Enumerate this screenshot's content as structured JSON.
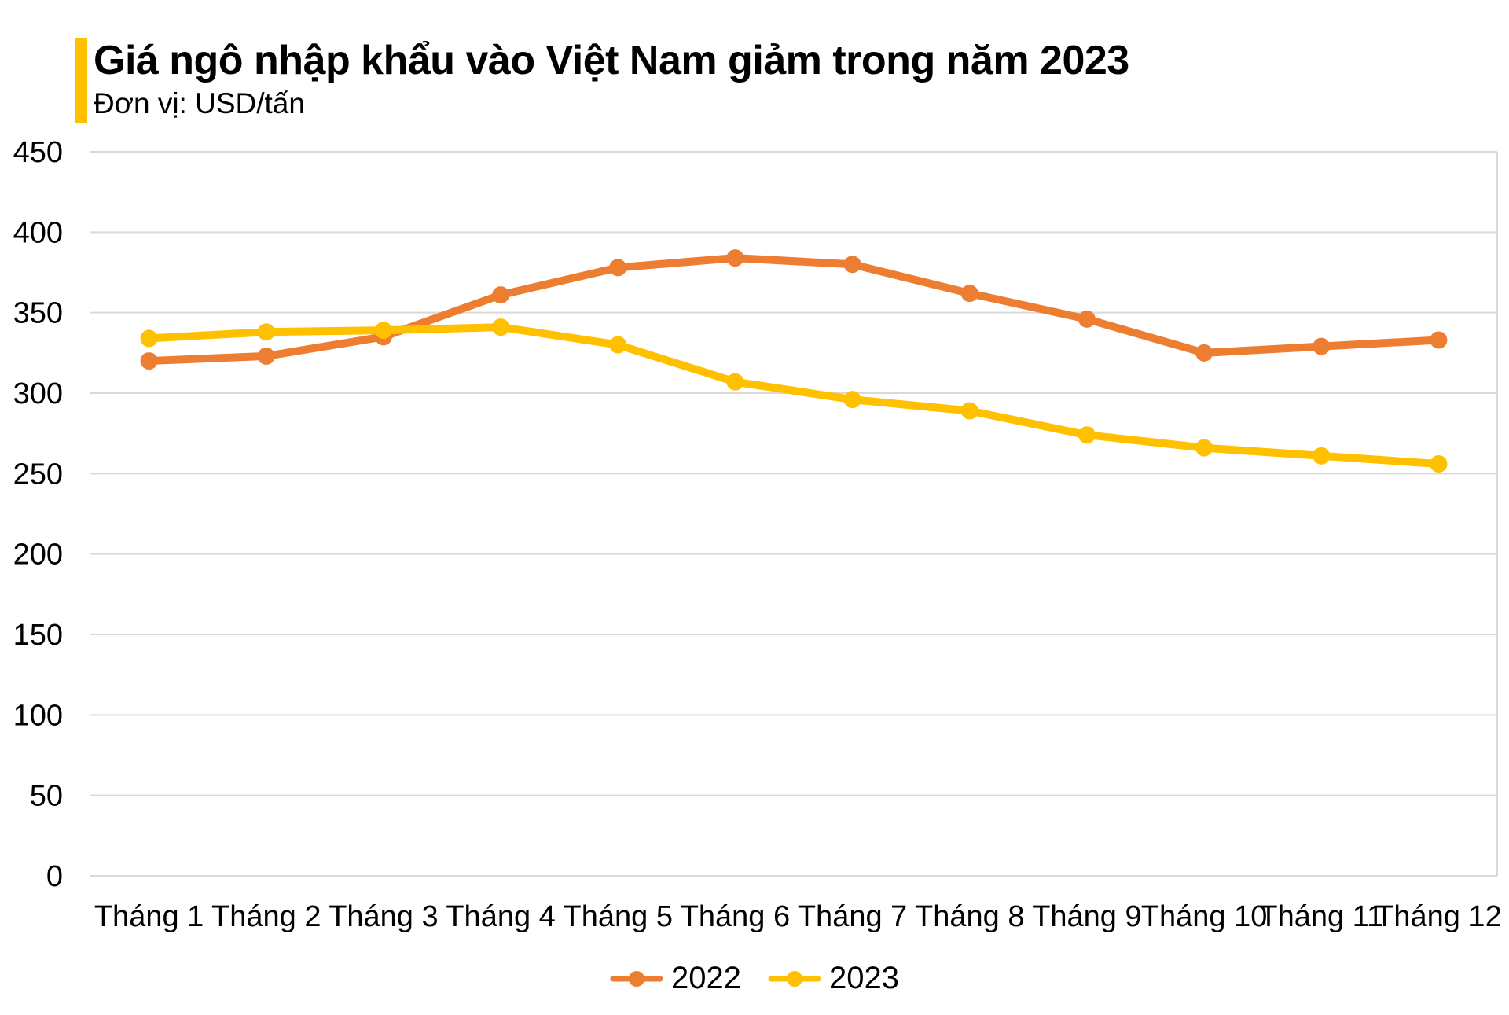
{
  "chart_data": {
    "type": "line",
    "title": "Giá ngô nhập khẩu vào Việt Nam giảm trong năm 2023",
    "subtitle": "Đơn vị: USD/tấn",
    "unit": "USD/tấn",
    "categories": [
      "Tháng 1",
      "Tháng 2",
      "Tháng 3",
      "Tháng 4",
      "Tháng 5",
      "Tháng 6",
      "Tháng 7",
      "Tháng 8",
      "Tháng 9",
      "Tháng 10",
      "Tháng 11",
      "Tháng 12"
    ],
    "series": [
      {
        "name": "2022",
        "color": "#ED7D31",
        "values": [
          320,
          323,
          335,
          361,
          378,
          384,
          380,
          362,
          346,
          325,
          329,
          333
        ]
      },
      {
        "name": "2023",
        "color": "#FFC000",
        "values": [
          334,
          338,
          339,
          341,
          330,
          307,
          296,
          289,
          274,
          266,
          261,
          256
        ]
      }
    ],
    "ylim": [
      0,
      450
    ],
    "ytick_step": 50,
    "yticks": [
      0,
      50,
      100,
      150,
      200,
      250,
      300,
      350,
      400,
      450
    ],
    "grid": true,
    "legend_position": "bottom",
    "accent_bar_color": "#FFC000",
    "gridline_color": "#D9D9D9",
    "text_color": "#000000",
    "background_color": "#FFFFFF"
  }
}
